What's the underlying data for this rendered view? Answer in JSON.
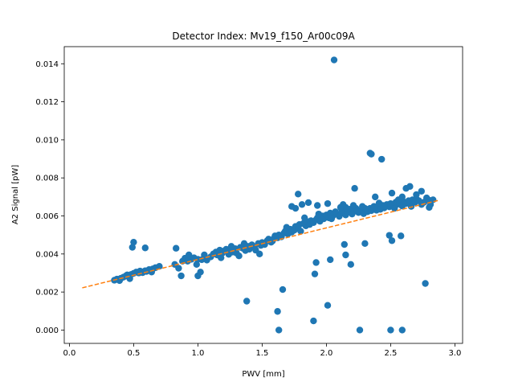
{
  "chart_data": {
    "type": "scatter",
    "title": "Detector Index: Mv19_f150_Ar00c09A",
    "xlabel": "PWV [mm]",
    "ylabel": "A2 Signal [pW]",
    "xlim": [
      -0.04,
      3.06
    ],
    "ylim": [
      -0.0007,
      0.0149
    ],
    "xticks": [
      0.0,
      0.5,
      1.0,
      1.5,
      2.0,
      2.5,
      3.0
    ],
    "xtick_labels": [
      "0.0",
      "0.5",
      "1.0",
      "1.5",
      "2.0",
      "2.5",
      "3.0"
    ],
    "yticks": [
      0.0,
      0.002,
      0.004,
      0.006,
      0.008,
      0.01,
      0.012,
      0.014
    ],
    "ytick_labels": [
      "0.000",
      "0.002",
      "0.004",
      "0.006",
      "0.008",
      "0.010",
      "0.012",
      "0.014"
    ],
    "colors": {
      "points": "#1f77b4",
      "fit": "#ff7f0e"
    },
    "series": [
      {
        "name": "data",
        "kind": "scatter",
        "points": [
          [
            0.35,
            0.00262
          ],
          [
            0.37,
            0.00268
          ],
          [
            0.39,
            0.0026
          ],
          [
            0.4,
            0.00272
          ],
          [
            0.42,
            0.00278
          ],
          [
            0.44,
            0.00285
          ],
          [
            0.45,
            0.0029
          ],
          [
            0.47,
            0.0027
          ],
          [
            0.48,
            0.00292
          ],
          [
            0.5,
            0.00298
          ],
          [
            0.52,
            0.00305
          ],
          [
            0.54,
            0.003
          ],
          [
            0.55,
            0.0031
          ],
          [
            0.57,
            0.00302
          ],
          [
            0.59,
            0.00312
          ],
          [
            0.6,
            0.00308
          ],
          [
            0.62,
            0.00318
          ],
          [
            0.64,
            0.00305
          ],
          [
            0.65,
            0.00322
          ],
          [
            0.67,
            0.00328
          ],
          [
            0.7,
            0.00335
          ],
          [
            0.49,
            0.00435
          ],
          [
            0.5,
            0.00462
          ],
          [
            0.59,
            0.00432
          ],
          [
            0.82,
            0.00345
          ],
          [
            0.83,
            0.0043
          ],
          [
            0.85,
            0.00325
          ],
          [
            0.87,
            0.00285
          ],
          [
            0.88,
            0.00362
          ],
          [
            0.9,
            0.00378
          ],
          [
            0.93,
            0.00395
          ],
          [
            0.95,
            0.00372
          ],
          [
            0.97,
            0.0038
          ],
          [
            0.99,
            0.00345
          ],
          [
            1.0,
            0.00372
          ],
          [
            1.0,
            0.00285
          ],
          [
            1.02,
            0.00305
          ],
          [
            1.03,
            0.0037
          ],
          [
            1.05,
            0.00382
          ],
          [
            1.07,
            0.00368
          ],
          [
            1.1,
            0.00385
          ],
          [
            1.12,
            0.004
          ],
          [
            1.14,
            0.0041
          ],
          [
            1.15,
            0.00395
          ],
          [
            1.17,
            0.0042
          ],
          [
            1.19,
            0.00405
          ],
          [
            1.2,
            0.00415
          ],
          [
            1.22,
            0.00425
          ],
          [
            1.24,
            0.00398
          ],
          [
            1.25,
            0.00418
          ],
          [
            1.27,
            0.0041
          ],
          [
            1.29,
            0.00428
          ],
          [
            1.3,
            0.00405
          ],
          [
            1.32,
            0.0039
          ],
          [
            1.33,
            0.00435
          ],
          [
            1.35,
            0.0043
          ],
          [
            1.37,
            0.00418
          ],
          [
            1.39,
            0.0044
          ],
          [
            1.4,
            0.00425
          ],
          [
            1.42,
            0.00448
          ],
          [
            1.44,
            0.00435
          ],
          [
            1.45,
            0.0042
          ],
          [
            1.47,
            0.00455
          ],
          [
            1.49,
            0.00445
          ],
          [
            1.5,
            0.0046
          ],
          [
            1.52,
            0.0045
          ],
          [
            1.54,
            0.0047
          ],
          [
            1.55,
            0.00478
          ],
          [
            1.57,
            0.00462
          ],
          [
            1.59,
            0.0048
          ],
          [
            1.6,
            0.00495
          ],
          [
            1.62,
            0.00485
          ],
          [
            1.63,
            0.005
          ],
          [
            1.65,
            0.0049
          ],
          [
            1.67,
            0.0051
          ],
          [
            1.68,
            0.0052
          ],
          [
            1.7,
            0.00505
          ],
          [
            1.72,
            0.0053
          ],
          [
            1.73,
            0.00515
          ],
          [
            1.75,
            0.00525
          ],
          [
            1.76,
            0.00545
          ],
          [
            1.78,
            0.00535
          ],
          [
            1.79,
            0.00555
          ],
          [
            1.8,
            0.0052
          ],
          [
            1.82,
            0.0056
          ],
          [
            1.84,
            0.00548
          ],
          [
            1.85,
            0.0057
          ],
          [
            1.87,
            0.00555
          ],
          [
            1.88,
            0.00575
          ],
          [
            1.9,
            0.00565
          ],
          [
            1.92,
            0.0058
          ],
          [
            1.93,
            0.0059
          ],
          [
            1.95,
            0.00572
          ],
          [
            1.97,
            0.006
          ],
          [
            1.98,
            0.00585
          ],
          [
            2.0,
            0.00605
          ],
          [
            2.02,
            0.0059
          ],
          [
            2.03,
            0.00615
          ],
          [
            2.05,
            0.006
          ],
          [
            2.07,
            0.00622
          ],
          [
            2.08,
            0.0061
          ],
          [
            2.1,
            0.00598
          ],
          [
            2.12,
            0.0063
          ],
          [
            2.13,
            0.00615
          ],
          [
            2.15,
            0.00605
          ],
          [
            2.17,
            0.0062
          ],
          [
            2.18,
            0.00635
          ],
          [
            2.2,
            0.0061
          ],
          [
            2.22,
            0.00625
          ],
          [
            2.23,
            0.0064
          ],
          [
            2.25,
            0.00618
          ],
          [
            2.27,
            0.0063
          ],
          [
            2.29,
            0.00612
          ],
          [
            2.3,
            0.00635
          ],
          [
            2.32,
            0.00622
          ],
          [
            2.34,
            0.0064
          ],
          [
            2.35,
            0.00628
          ],
          [
            2.37,
            0.0065
          ],
          [
            2.39,
            0.0063
          ],
          [
            2.4,
            0.00645
          ],
          [
            2.42,
            0.00635
          ],
          [
            2.44,
            0.00655
          ],
          [
            2.45,
            0.00642
          ],
          [
            2.47,
            0.0066
          ],
          [
            2.49,
            0.00648
          ],
          [
            2.5,
            0.00665
          ],
          [
            2.52,
            0.00655
          ],
          [
            2.54,
            0.00672
          ],
          [
            2.55,
            0.0066
          ],
          [
            2.57,
            0.00668
          ],
          [
            2.59,
            0.00652
          ],
          [
            2.6,
            0.00675
          ],
          [
            2.62,
            0.00665
          ],
          [
            2.64,
            0.0068
          ],
          [
            2.65,
            0.0067
          ],
          [
            2.67,
            0.00685
          ],
          [
            2.69,
            0.00672
          ],
          [
            2.7,
            0.0069
          ],
          [
            2.72,
            0.0068
          ],
          [
            2.74,
            0.0066
          ],
          [
            2.76,
            0.00672
          ],
          [
            2.78,
            0.00695
          ],
          [
            2.8,
            0.00682
          ],
          [
            2.81,
            0.0066
          ],
          [
            2.8,
            0.00645
          ],
          [
            2.83,
            0.00685
          ],
          [
            1.73,
            0.0065
          ],
          [
            1.76,
            0.0064
          ],
          [
            1.78,
            0.00715
          ],
          [
            1.81,
            0.0066
          ],
          [
            1.86,
            0.0067
          ],
          [
            1.93,
            0.00655
          ],
          [
            2.01,
            0.00665
          ],
          [
            2.13,
            0.0066
          ],
          [
            2.15,
            0.00645
          ],
          [
            2.22,
            0.00745
          ],
          [
            2.24,
            0.00625
          ],
          [
            2.3,
            0.0064
          ],
          [
            2.38,
            0.007
          ],
          [
            2.45,
            0.0065
          ],
          [
            2.51,
            0.0072
          ],
          [
            2.56,
            0.00685
          ],
          [
            2.59,
            0.007
          ],
          [
            2.62,
            0.00745
          ],
          [
            2.65,
            0.00755
          ],
          [
            2.7,
            0.00712
          ],
          [
            2.74,
            0.0073
          ],
          [
            2.06,
            0.0142
          ],
          [
            2.34,
            0.0093
          ],
          [
            2.35,
            0.00925
          ],
          [
            2.43,
            0.00898
          ],
          [
            2.49,
            0.00498
          ],
          [
            2.51,
            0.0047
          ],
          [
            2.58,
            0.00495
          ],
          [
            2.14,
            0.0045
          ],
          [
            2.15,
            0.00395
          ],
          [
            2.19,
            0.00345
          ],
          [
            2.3,
            0.00455
          ],
          [
            2.03,
            0.0037
          ],
          [
            1.92,
            0.00355
          ],
          [
            1.91,
            0.00295
          ],
          [
            1.66,
            0.00213
          ],
          [
            1.62,
            0.00098
          ],
          [
            1.38,
            0.00152
          ],
          [
            1.9,
            0.00048
          ],
          [
            2.01,
            0.0013
          ],
          [
            1.63,
            0.0
          ],
          [
            2.26,
            0.0
          ],
          [
            2.5,
            0.0
          ],
          [
            2.59,
            0.0
          ],
          [
            2.77,
            0.00245
          ],
          [
            0.92,
            0.00362
          ],
          [
            1.05,
            0.00395
          ],
          [
            1.18,
            0.0038
          ],
          [
            1.26,
            0.0044
          ],
          [
            1.36,
            0.00455
          ],
          [
            1.48,
            0.004
          ],
          [
            1.58,
            0.00468
          ],
          [
            1.69,
            0.0054
          ],
          [
            1.83,
            0.0059
          ],
          [
            1.94,
            0.0061
          ],
          [
            2.04,
            0.00585
          ],
          [
            2.11,
            0.00645
          ],
          [
            2.21,
            0.00655
          ],
          [
            2.28,
            0.0065
          ],
          [
            2.41,
            0.00668
          ],
          [
            2.53,
            0.0064
          ],
          [
            2.66,
            0.0065
          ]
        ]
      },
      {
        "name": "fit",
        "kind": "line",
        "style": "dashed",
        "x": [
          0.1,
          2.88
        ],
        "y": [
          0.00222,
          0.00683
        ]
      }
    ]
  }
}
